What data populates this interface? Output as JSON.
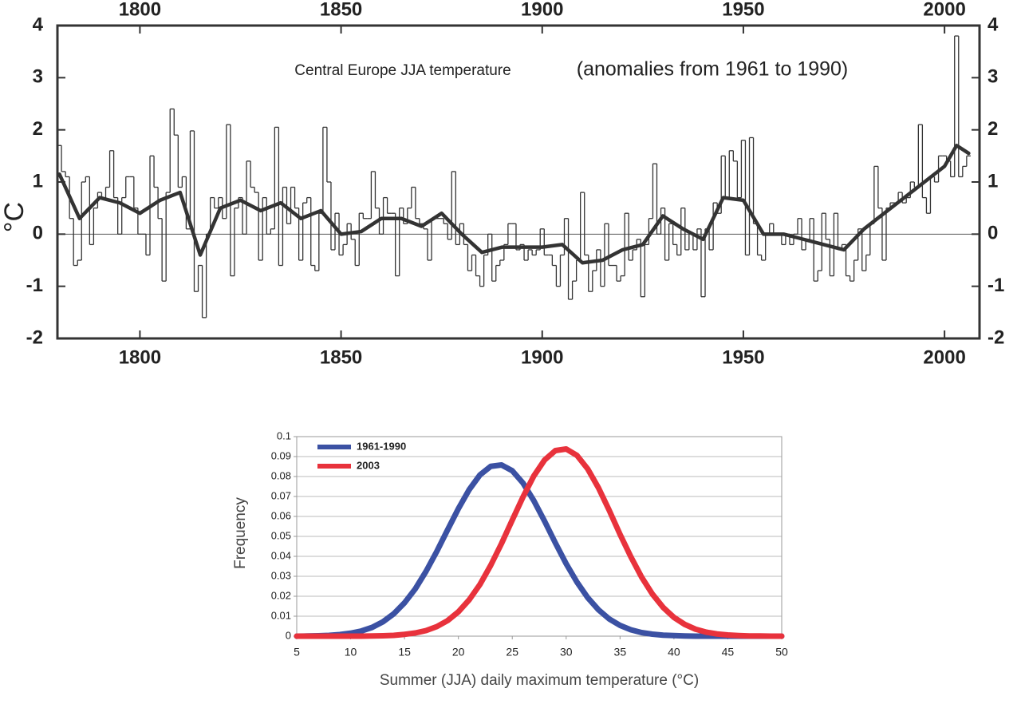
{
  "chart_data": [
    {
      "type": "line",
      "title": "Central Europe JJA temperature",
      "subtitle": "(anomalies from 1961 to 1990)",
      "ylabel": "°C",
      "xlim": [
        1779.5,
        2008.7
      ],
      "ylim": [
        -2,
        4
      ],
      "xticks": [
        1800,
        1850,
        1900,
        1950,
        2000
      ],
      "yticks": [
        -2,
        -1,
        0,
        1,
        2,
        3,
        4
      ],
      "ticks_both_sides": true,
      "grid": false,
      "series": [
        {
          "color": "#333333",
          "step": true,
          "x": [
            1780,
            1781,
            1782,
            1783,
            1784,
            1785,
            1786,
            1787,
            1788,
            1789,
            1790,
            1791,
            1792,
            1793,
            1794,
            1795,
            1796,
            1797,
            1798,
            1799,
            1800,
            1801,
            1802,
            1803,
            1804,
            1805,
            1806,
            1807,
            1808,
            1809,
            1810,
            1811,
            1812,
            1813,
            1814,
            1815,
            1816,
            1817,
            1818,
            1819,
            1820,
            1821,
            1822,
            1823,
            1824,
            1825,
            1826,
            1827,
            1828,
            1829,
            1830,
            1831,
            1832,
            1833,
            1834,
            1835,
            1836,
            1837,
            1838,
            1839,
            1840,
            1841,
            1842,
            1843,
            1844,
            1845,
            1846,
            1847,
            1848,
            1849,
            1850,
            1851,
            1852,
            1853,
            1854,
            1855,
            1856,
            1857,
            1858,
            1859,
            1860,
            1861,
            1862,
            1863,
            1864,
            1865,
            1866,
            1867,
            1868,
            1869,
            1870,
            1871,
            1872,
            1873,
            1874,
            1875,
            1876,
            1877,
            1878,
            1879,
            1880,
            1881,
            1882,
            1883,
            1884,
            1885,
            1886,
            1887,
            1888,
            1889,
            1890,
            1891,
            1892,
            1893,
            1894,
            1895,
            1896,
            1897,
            1898,
            1899,
            1900,
            1901,
            1902,
            1903,
            1904,
            1905,
            1906,
            1907,
            1908,
            1909,
            1910,
            1911,
            1912,
            1913,
            1914,
            1915,
            1916,
            1917,
            1918,
            1919,
            1920,
            1921,
            1922,
            1923,
            1924,
            1925,
            1926,
            1927,
            1928,
            1929,
            1930,
            1931,
            1932,
            1933,
            1934,
            1935,
            1936,
            1937,
            1938,
            1939,
            1940,
            1941,
            1942,
            1943,
            1944,
            1945,
            1946,
            1947,
            1948,
            1949,
            1950,
            1951,
            1952,
            1953,
            1954,
            1955,
            1956,
            1957,
            1958,
            1959,
            1960,
            1961,
            1962,
            1963,
            1964,
            1965,
            1966,
            1967,
            1968,
            1969,
            1970,
            1971,
            1972,
            1973,
            1974,
            1975,
            1976,
            1977,
            1978,
            1979,
            1980,
            1981,
            1982,
            1983,
            1984,
            1985,
            1986,
            1987,
            1988,
            1989,
            1990,
            1991,
            1992,
            1993,
            1994,
            1995,
            1996,
            1997,
            1998,
            1999,
            2000,
            2001,
            2002,
            2003,
            2004,
            2005,
            2006
          ],
          "values": [
            1.7,
            1.2,
            1.1,
            0.3,
            -0.6,
            -0.5,
            1.0,
            1.1,
            -0.2,
            0.5,
            0.8,
            0.7,
            0.9,
            1.6,
            0.7,
            0.0,
            0.7,
            1.1,
            1.1,
            0.5,
            0.0,
            0.0,
            -0.4,
            1.5,
            0.9,
            0.3,
            -0.9,
            0.8,
            2.4,
            1.9,
            0.9,
            1.1,
            0.1,
            1.98,
            -1.1,
            -0.6,
            -1.6,
            0.0,
            0.7,
            0.5,
            0.7,
            0.3,
            2.1,
            -0.8,
            0.5,
            0.7,
            0.0,
            1.4,
            0.9,
            0.8,
            -0.5,
            0.7,
            0.0,
            0.1,
            2.05,
            -0.6,
            0.9,
            0.2,
            0.9,
            0.5,
            -0.5,
            0.6,
            0.7,
            -0.6,
            -0.7,
            0.4,
            2.05,
            1.0,
            -0.3,
            0.4,
            -0.4,
            -0.2,
            0.2,
            -0.1,
            -0.6,
            0.4,
            0.3,
            0.3,
            1.2,
            0.5,
            0.0,
            0.7,
            0.4,
            0.4,
            -0.8,
            0.5,
            0.2,
            0.5,
            0.9,
            0.3,
            0.2,
            0.1,
            -0.5,
            0.3,
            0.3,
            0.3,
            0.2,
            -0.1,
            1.2,
            -0.2,
            0.2,
            -0.2,
            -0.7,
            -0.4,
            -0.8,
            -1.0,
            -0.4,
            0.0,
            -0.9,
            -0.6,
            -0.5,
            -0.2,
            0.2,
            0.2,
            -0.3,
            -0.2,
            -0.5,
            -0.3,
            -0.4,
            -0.3,
            0.1,
            -0.4,
            -0.4,
            -0.6,
            -1.0,
            -0.4,
            0.3,
            -1.25,
            -0.9,
            -0.5,
            0.8,
            -0.4,
            -1.1,
            -0.7,
            -0.3,
            -1.0,
            0.2,
            -0.6,
            -0.6,
            -0.9,
            -0.8,
            0.4,
            -0.5,
            -0.3,
            -0.1,
            -1.2,
            -0.2,
            0.3,
            1.35,
            0.0,
            0.5,
            -0.5,
            0.2,
            -0.2,
            -0.4,
            0.5,
            -0.3,
            0.0,
            -0.3,
            0.1,
            -1.2,
            0.1,
            -0.3,
            0.6,
            0.4,
            1.5,
            0.7,
            1.6,
            1.4,
            0.7,
            1.8,
            -0.4,
            1.85,
            0.2,
            -0.4,
            -0.5,
            0.0,
            0.2,
            0.0,
            0.0,
            -0.2,
            0.0,
            -0.2,
            0.0,
            0.3,
            -0.3,
            -0.1,
            0.3,
            -0.9,
            -0.7,
            0.4,
            -0.1,
            -0.8,
            0.4,
            -0.3,
            -0.2,
            -0.8,
            -0.9,
            -0.5,
            0.1,
            -0.7,
            -0.4,
            0.2,
            1.3,
            0.5,
            -0.5,
            0.5,
            0.6,
            0.6,
            0.8,
            0.6,
            0.7,
            1.0,
            0.9,
            2.1,
            0.7,
            0.4,
            1.1,
            1.0,
            1.5,
            1.5,
            1.4,
            1.1,
            3.8,
            1.1,
            1.3,
            1.5
          ]
        },
        {
          "color": "#333333",
          "step": false,
          "x": [
            1780,
            1785,
            1790,
            1795,
            1800,
            1805,
            1810,
            1815,
            1820,
            1825,
            1830,
            1835,
            1840,
            1845,
            1850,
            1855,
            1860,
            1865,
            1870,
            1875,
            1880,
            1885,
            1890,
            1895,
            1900,
            1905,
            1910,
            1915,
            1920,
            1925,
            1930,
            1935,
            1940,
            1945,
            1950,
            1955,
            1960,
            1965,
            1970,
            1975,
            1980,
            1985,
            1990,
            1995,
            2000,
            2003,
            2006
          ],
          "values": [
            1.15,
            0.3,
            0.7,
            0.6,
            0.4,
            0.65,
            0.8,
            -0.4,
            0.5,
            0.65,
            0.45,
            0.6,
            0.3,
            0.45,
            0.0,
            0.05,
            0.3,
            0.3,
            0.15,
            0.4,
            0.0,
            -0.35,
            -0.25,
            -0.25,
            -0.25,
            -0.2,
            -0.55,
            -0.5,
            -0.3,
            -0.2,
            0.35,
            0.1,
            -0.1,
            0.7,
            0.65,
            0.0,
            0.0,
            -0.1,
            -0.2,
            -0.3,
            0.1,
            0.4,
            0.7,
            1.0,
            1.3,
            1.7,
            1.55
          ]
        }
      ]
    },
    {
      "type": "line",
      "ylabel": "Frequency",
      "xlabel": "Summer (JJA) daily maximum temperature (°C)",
      "xlim": [
        5,
        50
      ],
      "ylim": [
        0,
        0.1
      ],
      "xticks": [
        5,
        10,
        15,
        20,
        25,
        30,
        35,
        40,
        45,
        50
      ],
      "yticks": [
        0,
        0.01,
        0.02,
        0.03,
        0.04,
        0.05,
        0.06,
        0.07,
        0.08,
        0.09,
        0.1
      ],
      "grid": true,
      "legend": "top-left",
      "x": [
        5,
        6,
        7,
        8,
        9,
        10,
        11,
        12,
        13,
        14,
        15,
        16,
        17,
        18,
        19,
        20,
        21,
        22,
        23,
        24,
        25,
        26,
        27,
        28,
        29,
        30,
        31,
        32,
        33,
        34,
        35,
        36,
        37,
        38,
        39,
        40,
        41,
        42,
        43,
        44,
        45,
        46,
        47,
        48,
        49,
        50
      ],
      "series": [
        {
          "name": "1961-1990",
          "color": "#3b51a3",
          "values": [
            0,
            0.0001,
            0.0002,
            0.0004,
            0.0008,
            0.0015,
            0.0026,
            0.0044,
            0.0072,
            0.0112,
            0.0167,
            0.0237,
            0.0325,
            0.0425,
            0.0533,
            0.0639,
            0.0734,
            0.0808,
            0.0851,
            0.0858,
            0.0829,
            0.0767,
            0.0679,
            0.0576,
            0.0467,
            0.0363,
            0.0271,
            0.0193,
            0.0132,
            0.0086,
            0.0054,
            0.0032,
            0.0018,
            0.001,
            0.0005,
            0.0003,
            0.0001,
            0,
            0,
            0,
            0,
            0,
            0,
            0,
            0,
            0
          ]
        },
        {
          "name": "2003",
          "color": "#e8323c",
          "values": [
            0,
            0,
            0,
            0,
            0,
            0,
            0,
            0.0001,
            0.0002,
            0.0004,
            0.0009,
            0.0016,
            0.0028,
            0.0048,
            0.0078,
            0.0122,
            0.0182,
            0.0259,
            0.0355,
            0.0464,
            0.0582,
            0.0698,
            0.0803,
            0.0883,
            0.093,
            0.0938,
            0.0906,
            0.0838,
            0.0743,
            0.063,
            0.051,
            0.0398,
            0.0296,
            0.0211,
            0.0144,
            0.0094,
            0.0059,
            0.0035,
            0.002,
            0.0011,
            0.0006,
            0.0003,
            0.0001,
            0.0001,
            0,
            0
          ]
        }
      ]
    }
  ]
}
